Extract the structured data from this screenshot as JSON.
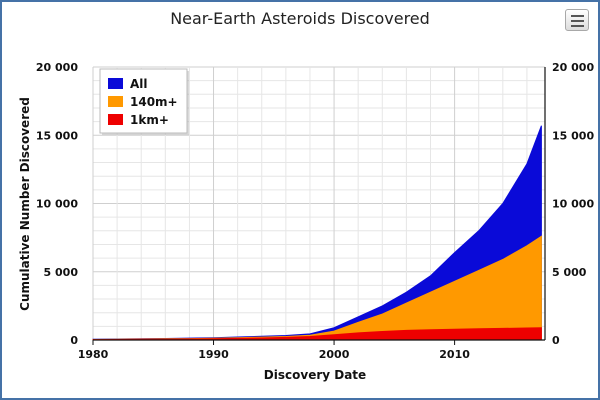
{
  "chart_data": {
    "type": "area",
    "title": "Near-Earth Asteroids Discovered",
    "xlabel": "Discovery Date",
    "ylabel": "Cumulative Number Discovered",
    "xlim": [
      1980,
      2017.5
    ],
    "ylim": [
      0,
      20000
    ],
    "x_ticks": [
      1980,
      1990,
      2000,
      2010
    ],
    "y_ticks": [
      0,
      5000,
      10000,
      15000,
      20000
    ],
    "y_tick_labels": [
      "0",
      "5 000",
      "10 000",
      "15 000",
      "20 000"
    ],
    "grid": true,
    "stacking": "overlapping",
    "legend_position": "top-left",
    "x": [
      1980,
      1982,
      1984,
      1986,
      1988,
      1990,
      1992,
      1994,
      1996,
      1998,
      2000,
      2002,
      2004,
      2006,
      2008,
      2010,
      2012,
      2014,
      2016,
      2017.2
    ],
    "series": [
      {
        "name": "All",
        "color": "#0a0ad8",
        "values": [
          50,
          70,
          90,
          110,
          140,
          170,
          220,
          270,
          330,
          450,
          900,
          1700,
          2500,
          3500,
          4700,
          6400,
          8000,
          10000,
          12900,
          15700
        ]
      },
      {
        "name": "140m+",
        "color": "#ff9900",
        "values": [
          40,
          55,
          70,
          85,
          105,
          130,
          170,
          210,
          260,
          350,
          650,
          1300,
          1900,
          2700,
          3500,
          4300,
          5100,
          5900,
          6900,
          7600
        ]
      },
      {
        "name": "1km+",
        "color": "#ee0000",
        "values": [
          30,
          40,
          50,
          60,
          75,
          90,
          120,
          150,
          190,
          260,
          380,
          520,
          620,
          700,
          750,
          790,
          820,
          850,
          880,
          900
        ]
      }
    ]
  },
  "ui": {
    "menu_icon": "hamburger-icon"
  }
}
